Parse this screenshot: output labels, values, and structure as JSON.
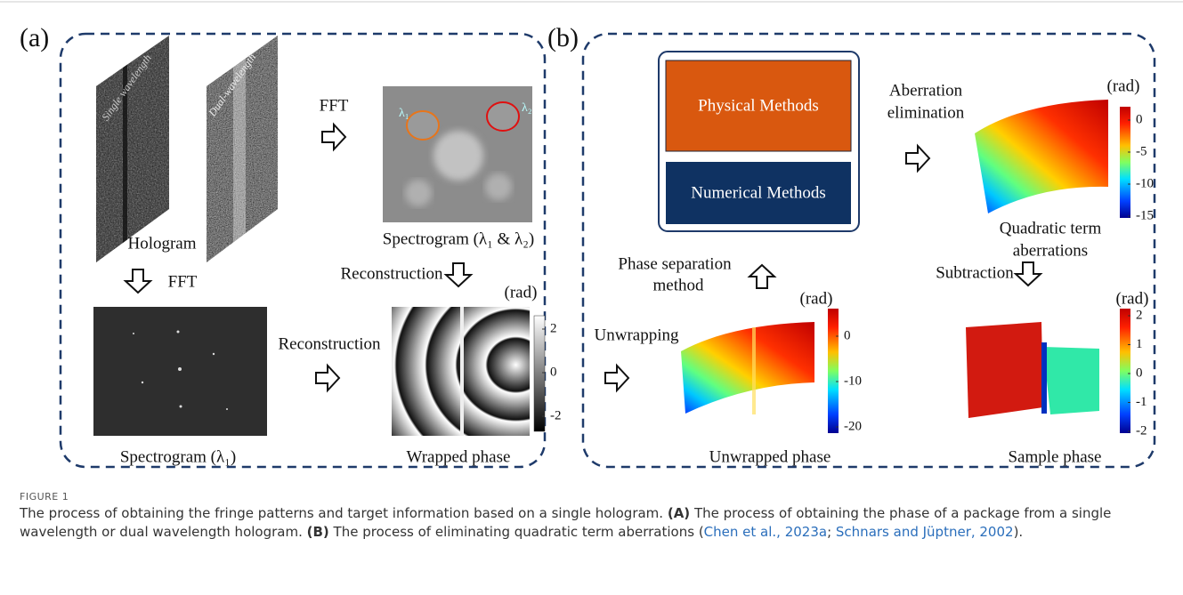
{
  "panel_a": {
    "label": "(a)",
    "hologram": {
      "single_label": "Single wavelength",
      "dual_label": "Dual-wavelength",
      "label": "Hologram"
    },
    "fft_right": "FFT",
    "fft_down": "FFT",
    "spectrogram_dual": {
      "lambda1": "λ₁",
      "lambda2": "λ₂",
      "label": "Spectrogram (λ₁ & λ₂)"
    },
    "reconstruction_down": "Reconstruction",
    "reconstruction_right": "Reconstruction",
    "spectrogram_single": {
      "label": "Spectrogram (λ₁)"
    },
    "wrapped_phase": {
      "label": "Wrapped phase",
      "unit": "(rad)",
      "ticks": [
        2,
        0,
        -2
      ]
    }
  },
  "panel_b": {
    "label": "(b)",
    "methods": {
      "physical": "Physical Methods",
      "numerical": "Numerical Methods"
    },
    "aberration_elimination": [
      "Aberration",
      "elimination"
    ],
    "quadratic": {
      "label": [
        "Quadratic term",
        "aberrations"
      ],
      "unit": "(rad)",
      "ticks": [
        0,
        -5,
        -10,
        -15
      ]
    },
    "phase_separation": [
      "Phase separation",
      "method"
    ],
    "subtraction": "Subtraction",
    "unwrapping": "Unwrapping",
    "unwrapped": {
      "label": "Unwrapped phase",
      "unit": "(rad)",
      "ticks": [
        0,
        -10,
        -20
      ]
    },
    "sample": {
      "label": "Sample phase",
      "unit": "(rad)",
      "ticks": [
        2,
        1,
        0,
        -1,
        -2
      ]
    }
  },
  "caption": {
    "label": "FIGURE 1",
    "parts": [
      {
        "text": "The process of obtaining the fringe patterns and target information based on a single hologram. ",
        "style": "plain"
      },
      {
        "text": "(A)",
        "style": "bold"
      },
      {
        "text": " The process of obtaining the phase of a package from a single wavelength or dual wavelength hologram. ",
        "style": "plain"
      },
      {
        "text": "(B)",
        "style": "bold"
      },
      {
        "text": " The process of eliminating quadratic term aberrations (",
        "style": "plain"
      },
      {
        "text": "Chen et al., 2023a",
        "style": "link"
      },
      {
        "text": "; ",
        "style": "plain"
      },
      {
        "text": "Schnars and Jüptner, 2002",
        "style": "link"
      },
      {
        "text": ").",
        "style": "plain"
      }
    ]
  }
}
